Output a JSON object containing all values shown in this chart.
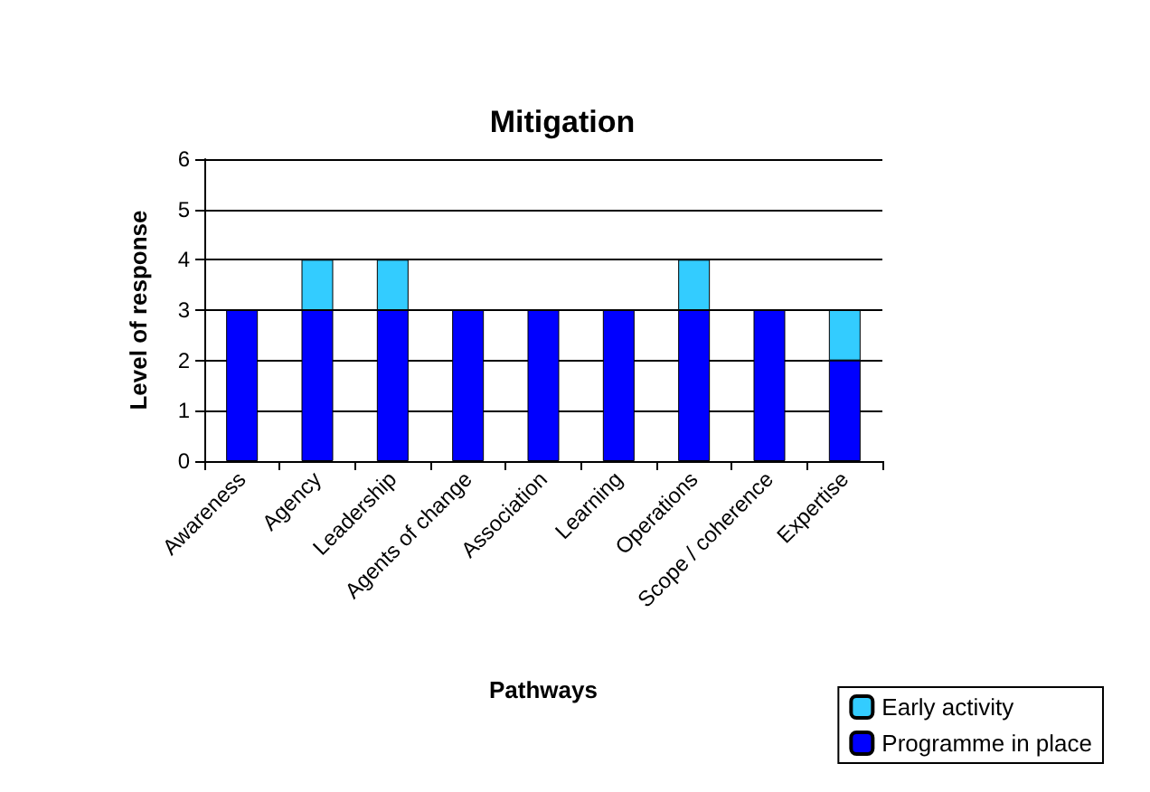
{
  "chart_data": {
    "type": "bar",
    "title": "Mitigation",
    "xlabel": "Pathways",
    "ylabel": "Level of response",
    "categories": [
      "Awareness",
      "Agency",
      "Leadership",
      "Agents of change",
      "Association",
      "Learning",
      "Operations",
      "Scope / coherence",
      "Expertise"
    ],
    "series": [
      {
        "name": "Programme in place",
        "color": "#0000ff",
        "values": [
          3,
          3,
          3,
          3,
          3,
          3,
          3,
          3,
          2
        ]
      },
      {
        "name": "Early activity",
        "color": "#33ccff",
        "values": [
          0,
          1,
          1,
          0,
          0,
          0,
          1,
          0,
          1
        ]
      }
    ],
    "stacked": true,
    "ylim": [
      0,
      6
    ],
    "yticks": [
      0,
      1,
      2,
      3,
      4,
      5,
      6
    ],
    "grid": "y",
    "legend": "bottom right"
  }
}
